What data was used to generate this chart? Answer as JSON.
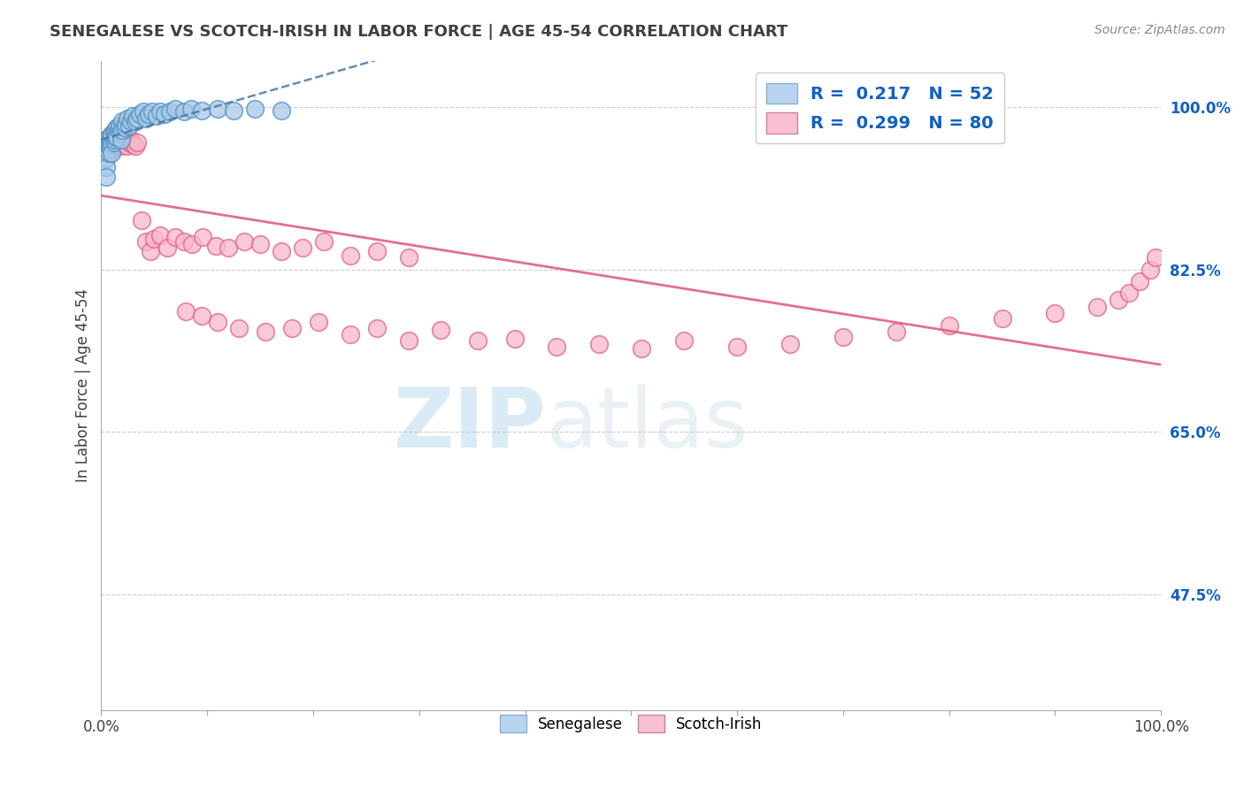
{
  "title": "SENEGALESE VS SCOTCH-IRISH IN LABOR FORCE | AGE 45-54 CORRELATION CHART",
  "source_text": "Source: ZipAtlas.com",
  "ylabel": "In Labor Force | Age 45-54",
  "xlim": [
    0,
    1
  ],
  "ylim": [
    0.35,
    1.05
  ],
  "yticks": [
    0.475,
    0.65,
    0.825,
    1.0
  ],
  "ytick_labels": [
    "47.5%",
    "65.0%",
    "82.5%",
    "100.0%"
  ],
  "xticks": [
    0,
    0.1,
    0.2,
    0.3,
    0.4,
    0.5,
    0.6,
    0.7,
    0.8,
    0.9,
    1.0
  ],
  "xtick_labels_shown": {
    "0": "0.0%",
    "1": "100.0%"
  },
  "watermark_zip": "ZIP",
  "watermark_atlas": "atlas",
  "senegalese_color": "#a8c8e8",
  "senegalese_edge_color": "#5090c0",
  "scotchirish_color": "#f8b8cc",
  "scotchirish_edge_color": "#e06080",
  "sen_line_color": "#4878a8",
  "sci_line_color": "#e06080",
  "legend_box_color_sen": "#b8d4f0",
  "legend_box_color_sci": "#f8c0d0",
  "legend_text_color": "#1060c0",
  "axis_label_color": "#1060c0",
  "title_color": "#404040",
  "source_color": "#888888",
  "ylabel_color": "#404040",
  "xtick_label_color": "#404040",
  "sen_r": 0.217,
  "sen_n": 52,
  "sci_r": 0.299,
  "sci_n": 80,
  "sen_x": [
    0.005,
    0.005,
    0.005,
    0.005,
    0.005,
    0.007,
    0.007,
    0.008,
    0.008,
    0.009,
    0.009,
    0.01,
    0.01,
    0.01,
    0.012,
    0.012,
    0.013,
    0.013,
    0.014,
    0.015,
    0.015,
    0.016,
    0.017,
    0.018,
    0.019,
    0.02,
    0.02,
    0.022,
    0.023,
    0.025,
    0.026,
    0.028,
    0.03,
    0.032,
    0.034,
    0.036,
    0.04,
    0.042,
    0.045,
    0.048,
    0.052,
    0.056,
    0.06,
    0.065,
    0.07,
    0.078,
    0.085,
    0.095,
    0.11,
    0.125,
    0.145,
    0.17
  ],
  "sen_y": [
    0.965,
    0.955,
    0.945,
    0.935,
    0.925,
    0.96,
    0.95,
    0.968,
    0.958,
    0.965,
    0.955,
    0.97,
    0.96,
    0.95,
    0.972,
    0.962,
    0.975,
    0.965,
    0.968,
    0.978,
    0.968,
    0.975,
    0.98,
    0.972,
    0.965,
    0.985,
    0.975,
    0.978,
    0.982,
    0.988,
    0.98,
    0.985,
    0.99,
    0.985,
    0.988,
    0.992,
    0.995,
    0.988,
    0.992,
    0.995,
    0.99,
    0.995,
    0.992,
    0.995,
    0.998,
    0.995,
    0.998,
    0.996,
    0.998,
    0.996,
    0.998,
    0.996
  ],
  "sci_x": [
    0.004,
    0.005,
    0.006,
    0.006,
    0.007,
    0.007,
    0.008,
    0.008,
    0.009,
    0.009,
    0.01,
    0.01,
    0.011,
    0.011,
    0.012,
    0.013,
    0.014,
    0.015,
    0.016,
    0.017,
    0.018,
    0.019,
    0.02,
    0.022,
    0.024,
    0.026,
    0.028,
    0.03,
    0.032,
    0.034,
    0.038,
    0.042,
    0.046,
    0.05,
    0.056,
    0.062,
    0.07,
    0.078,
    0.086,
    0.096,
    0.108,
    0.12,
    0.135,
    0.15,
    0.17,
    0.19,
    0.21,
    0.235,
    0.26,
    0.29,
    0.08,
    0.095,
    0.11,
    0.13,
    0.155,
    0.18,
    0.205,
    0.235,
    0.26,
    0.29,
    0.32,
    0.355,
    0.39,
    0.43,
    0.47,
    0.51,
    0.55,
    0.6,
    0.65,
    0.7,
    0.75,
    0.8,
    0.85,
    0.9,
    0.94,
    0.96,
    0.97,
    0.98,
    0.99,
    0.995
  ],
  "sci_y": [
    0.965,
    0.96,
    0.958,
    0.955,
    0.962,
    0.958,
    0.965,
    0.96,
    0.968,
    0.963,
    0.97,
    0.966,
    0.96,
    0.955,
    0.962,
    0.965,
    0.968,
    0.96,
    0.965,
    0.962,
    0.958,
    0.962,
    0.965,
    0.96,
    0.958,
    0.962,
    0.965,
    0.96,
    0.958,
    0.962,
    0.878,
    0.855,
    0.845,
    0.858,
    0.862,
    0.848,
    0.86,
    0.855,
    0.852,
    0.86,
    0.85,
    0.848,
    0.855,
    0.852,
    0.845,
    0.848,
    0.855,
    0.84,
    0.845,
    0.838,
    0.78,
    0.775,
    0.768,
    0.762,
    0.758,
    0.762,
    0.768,
    0.755,
    0.762,
    0.748,
    0.76,
    0.748,
    0.75,
    0.742,
    0.745,
    0.74,
    0.748,
    0.742,
    0.745,
    0.752,
    0.758,
    0.765,
    0.772,
    0.778,
    0.785,
    0.792,
    0.8,
    0.812,
    0.825,
    0.838
  ]
}
